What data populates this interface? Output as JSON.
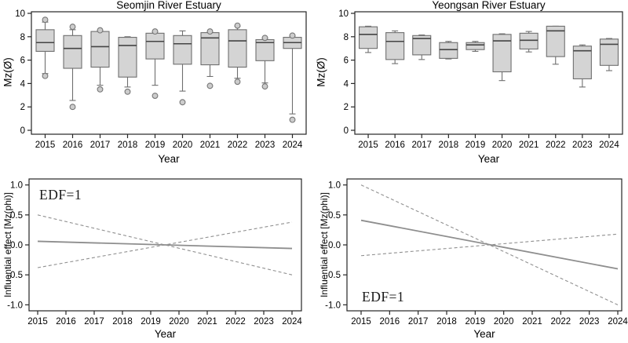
{
  "colors": {
    "background": "#ffffff",
    "frame": "#262626",
    "box_fill": "#d4d4d4",
    "box_stroke": "#6f6f6f",
    "median": "#454545",
    "whisker": "#6f6f6f",
    "outlier_fill": "#cccccc",
    "outlier_stroke": "#777777",
    "fit_line": "#8e8e8e",
    "ci_line": "#909090",
    "text": "#000000"
  },
  "chart_data": [
    {
      "id": "seomjin-boxplot",
      "type": "box",
      "title": "Seomjin River Estuary",
      "xlabel": "Year",
      "ylabel": "Mz(Ø)",
      "ylim": [
        0,
        10
      ],
      "grid": false,
      "yticks": [
        {
          "v": 0,
          "label": "0"
        },
        {
          "v": 2,
          "label": "2"
        },
        {
          "v": 4,
          "label": "4"
        },
        {
          "v": 6,
          "label": "6"
        },
        {
          "v": 8,
          "label": "8"
        },
        {
          "v": 10,
          "label": "10"
        }
      ],
      "categories": [
        "2015",
        "2016",
        "2017",
        "2018",
        "2019",
        "2020",
        "2021",
        "2022",
        "2023",
        "2024"
      ],
      "boxes": [
        {
          "q1": 6.75,
          "median": 7.5,
          "q3": 8.6,
          "whisker_low": 4.85,
          "whisker_high": 9.25,
          "outliers": [
            9.45,
            4.65
          ]
        },
        {
          "q1": 5.3,
          "median": 7.0,
          "q3": 8.1,
          "whisker_low": 2.55,
          "whisker_high": 8.6,
          "outliers": [
            8.85,
            2.0
          ]
        },
        {
          "q1": 5.4,
          "median": 7.15,
          "q3": 8.45,
          "whisker_low": 3.85,
          "whisker_high": 8.5,
          "outliers": [
            8.55,
            3.5
          ]
        },
        {
          "q1": 4.55,
          "median": 7.25,
          "q3": 7.95,
          "whisker_low": 3.7,
          "whisker_high": 8.0,
          "outliers": [
            3.3
          ]
        },
        {
          "q1": 6.1,
          "median": 7.6,
          "q3": 8.3,
          "whisker_low": 3.85,
          "whisker_high": 8.4,
          "outliers": [
            8.45,
            2.95
          ]
        },
        {
          "q1": 5.65,
          "median": 7.4,
          "q3": 8.1,
          "whisker_low": 3.35,
          "whisker_high": 8.5,
          "outliers": [
            2.4
          ]
        },
        {
          "q1": 5.6,
          "median": 7.9,
          "q3": 8.35,
          "whisker_low": 4.6,
          "whisker_high": 8.4,
          "outliers": [
            8.45,
            3.8
          ]
        },
        {
          "q1": 5.4,
          "median": 7.65,
          "q3": 8.6,
          "whisker_low": 4.45,
          "whisker_high": 8.9,
          "outliers": [
            8.95,
            4.15
          ]
        },
        {
          "q1": 5.95,
          "median": 7.5,
          "q3": 7.75,
          "whisker_low": 4.05,
          "whisker_high": 7.85,
          "outliers": [
            7.9,
            3.75
          ]
        },
        {
          "q1": 7.0,
          "median": 7.5,
          "q3": 7.95,
          "whisker_low": 1.4,
          "whisker_high": 8.05,
          "outliers": [
            8.1,
            0.9
          ]
        }
      ]
    },
    {
      "id": "yeongsan-boxplot",
      "type": "box",
      "title": "Yeongsan River Estuary",
      "xlabel": "Year",
      "ylabel": "Mz(Ø)",
      "ylim": [
        0,
        10
      ],
      "grid": false,
      "yticks": [
        {
          "v": 0,
          "label": "0"
        },
        {
          "v": 2,
          "label": "2"
        },
        {
          "v": 4,
          "label": "4"
        },
        {
          "v": 6,
          "label": "6"
        },
        {
          "v": 8,
          "label": "8"
        },
        {
          "v": 10,
          "label": "10"
        }
      ],
      "categories": [
        "2015",
        "2016",
        "2017",
        "2018",
        "2019",
        "2020",
        "2021",
        "2022",
        "2023",
        "2024"
      ],
      "boxes": [
        {
          "q1": 7.0,
          "median": 8.2,
          "q3": 8.85,
          "whisker_low": 6.65,
          "whisker_high": 8.9,
          "outliers": []
        },
        {
          "q1": 6.05,
          "median": 7.6,
          "q3": 8.35,
          "whisker_low": 5.7,
          "whisker_high": 8.5,
          "outliers": []
        },
        {
          "q1": 6.45,
          "median": 7.85,
          "q3": 8.1,
          "whisker_low": 6.05,
          "whisker_high": 8.15,
          "outliers": []
        },
        {
          "q1": 6.15,
          "median": 6.9,
          "q3": 7.5,
          "whisker_low": 6.1,
          "whisker_high": 7.6,
          "outliers": []
        },
        {
          "q1": 6.9,
          "median": 7.3,
          "q3": 7.5,
          "whisker_low": 6.75,
          "whisker_high": 7.6,
          "outliers": []
        },
        {
          "q1": 5.0,
          "median": 7.65,
          "q3": 8.2,
          "whisker_low": 4.25,
          "whisker_high": 8.25,
          "outliers": []
        },
        {
          "q1": 6.95,
          "median": 7.7,
          "q3": 8.3,
          "whisker_low": 6.7,
          "whisker_high": 8.45,
          "outliers": []
        },
        {
          "q1": 6.3,
          "median": 8.5,
          "q3": 8.9,
          "whisker_low": 5.65,
          "whisker_high": 8.9,
          "outliers": []
        },
        {
          "q1": 4.4,
          "median": 6.8,
          "q3": 7.2,
          "whisker_low": 3.7,
          "whisker_high": 7.3,
          "outliers": []
        },
        {
          "q1": 5.55,
          "median": 7.35,
          "q3": 7.8,
          "whisker_low": 5.1,
          "whisker_high": 7.85,
          "outliers": []
        }
      ]
    },
    {
      "id": "seomjin-gam",
      "type": "line",
      "title": "",
      "xlabel": "Year",
      "ylabel": "Influential effect [Mz(phi)]",
      "annotation": "EDF=1",
      "annotation_pos": "top-left",
      "xlim": [
        2015,
        2024
      ],
      "ylim": [
        -1.0,
        1.0
      ],
      "grid": false,
      "yticks": [
        {
          "v": 1.0,
          "label": "1.0"
        },
        {
          "v": 0.5,
          "label": "0.5"
        },
        {
          "v": 0.0,
          "label": "0.0"
        },
        {
          "v": -0.5,
          "label": "-0.5"
        },
        {
          "v": -1.0,
          "label": "-1.0"
        }
      ],
      "categories": [
        "2015",
        "2016",
        "2017",
        "2018",
        "2019",
        "2020",
        "2021",
        "2022",
        "2023",
        "2024"
      ],
      "series": [
        {
          "name": "fit",
          "style": "solid",
          "points": [
            {
              "x": 2015,
              "y": 0.06
            },
            {
              "x": 2024,
              "y": -0.06
            }
          ]
        },
        {
          "name": "upper-ci",
          "style": "dashed",
          "points": [
            {
              "x": 2015,
              "y": 0.5
            },
            {
              "x": 2024,
              "y": -0.5
            }
          ]
        },
        {
          "name": "lower-ci",
          "style": "dashed",
          "points": [
            {
              "x": 2015,
              "y": -0.38
            },
            {
              "x": 2024,
              "y": 0.38
            }
          ]
        }
      ]
    },
    {
      "id": "yeongsan-gam",
      "type": "line",
      "title": "",
      "xlabel": "Year",
      "ylabel": "Influential effect [Mz(phi)]",
      "annotation": "EDF=1",
      "annotation_pos": "bottom-left",
      "xlim": [
        2015,
        2024
      ],
      "ylim": [
        -1.0,
        1.0
      ],
      "grid": false,
      "yticks": [
        {
          "v": 1.0,
          "label": "1.0"
        },
        {
          "v": 0.5,
          "label": "0.5"
        },
        {
          "v": 0.0,
          "label": "0.0"
        },
        {
          "v": -0.5,
          "label": "-0.5"
        },
        {
          "v": -1.0,
          "label": "-1.0"
        }
      ],
      "categories": [
        "2015",
        "2016",
        "2017",
        "2018",
        "2019",
        "2020",
        "2021",
        "2022",
        "2023",
        "2024"
      ],
      "series": [
        {
          "name": "fit",
          "style": "solid",
          "points": [
            {
              "x": 2015,
              "y": 0.41
            },
            {
              "x": 2024,
              "y": -0.4
            }
          ]
        },
        {
          "name": "upper-ci",
          "style": "dashed",
          "points": [
            {
              "x": 2015,
              "y": 1.0
            },
            {
              "x": 2024,
              "y": -1.0
            }
          ]
        },
        {
          "name": "lower-ci",
          "style": "dashed",
          "points": [
            {
              "x": 2015,
              "y": -0.18
            },
            {
              "x": 2024,
              "y": 0.18
            }
          ]
        }
      ]
    }
  ]
}
